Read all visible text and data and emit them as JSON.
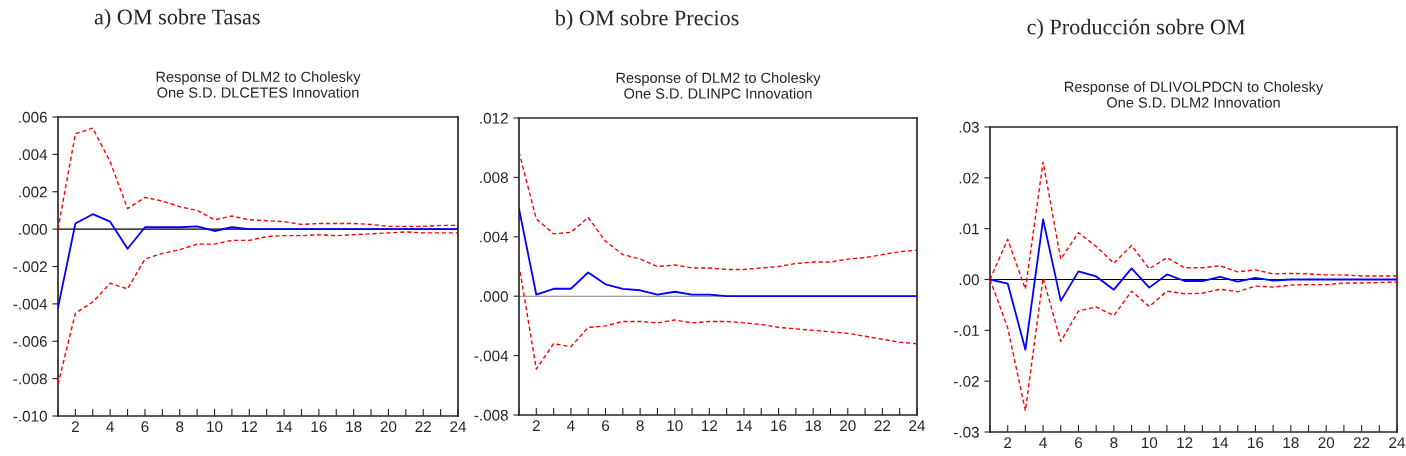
{
  "chart_data": [
    {
      "type": "line",
      "title": "a) OM sobre Tasas",
      "subtitle": "Response of DLM2 to Cholesky\nOne S.D. DLCETES Innovation",
      "x": [
        1,
        2,
        3,
        4,
        5,
        6,
        7,
        8,
        9,
        10,
        11,
        12,
        13,
        14,
        15,
        16,
        17,
        18,
        19,
        20,
        21,
        22,
        23,
        24
      ],
      "series": [
        {
          "color": "#0000ff",
          "line_style": "solid",
          "values": [
            -0.0042,
            0.0003,
            0.0008,
            0.0004,
            -0.00105,
            0.0001,
            0.0001,
            0.0001,
            0.00015,
            -0.0001,
            0.0001,
            0,
            0,
            0,
            0,
            0,
            0,
            0,
            0,
            0,
            0,
            0,
            0,
            0
          ]
        },
        {
          "color": "#ff0000",
          "line_style": "dashed",
          "values": [
            0,
            0.0051,
            0.0054,
            0.0036,
            0.0011,
            0.0017,
            0.0015,
            0.0012,
            0.001,
            0.0005,
            0.0007,
            0.0005,
            0.00045,
            0.0004,
            0.00025,
            0.0003,
            0.0003,
            0.0003,
            0.00025,
            0.00015,
            0.00015,
            0.00015,
            0.0002,
            0.0002
          ]
        },
        {
          "color": "#ff0000",
          "line_style": "dashed",
          "values": [
            -0.0083,
            -0.0045,
            -0.0039,
            -0.0029,
            -0.0032,
            -0.0016,
            -0.0013,
            -0.0011,
            -0.0008,
            -0.0008,
            -0.0006,
            -0.0006,
            -0.0004,
            -0.00035,
            -0.00035,
            -0.0003,
            -0.00035,
            -0.0003,
            -0.00025,
            -0.0002,
            -0.00015,
            -0.0002,
            -0.0002,
            -0.0002
          ]
        }
      ],
      "xlim": [
        1,
        24
      ],
      "xticks": [
        {
          "value": 1,
          "label": null
        },
        2,
        {
          "value": 3,
          "label": null
        },
        4,
        {
          "value": 5,
          "label": null
        },
        6,
        {
          "value": 7,
          "label": null
        },
        8,
        {
          "value": 9,
          "label": null
        },
        10,
        {
          "value": 11,
          "label": null
        },
        12,
        {
          "value": 13,
          "label": null
        },
        14,
        {
          "value": 15,
          "label": null
        },
        16,
        {
          "value": 17,
          "label": null
        },
        18,
        {
          "value": 19,
          "label": null
        },
        20,
        {
          "value": 21,
          "label": null
        },
        22,
        {
          "value": 23,
          "label": null
        },
        24
      ],
      "ylim": [
        -0.01,
        0.006
      ],
      "yticks": [
        {
          "value": -0.01,
          "label": "-.010"
        },
        {
          "value": -0.008,
          "label": "-.008"
        },
        {
          "value": -0.006,
          "label": "-.006"
        },
        {
          "value": -0.004,
          "label": "-.004"
        },
        {
          "value": -0.002,
          "label": "-.002"
        },
        {
          "value": 0,
          "label": ".000"
        },
        {
          "value": 0.002,
          "label": ".002"
        },
        {
          "value": 0.004,
          "label": ".004"
        },
        {
          "value": 0.006,
          "label": ".006"
        }
      ],
      "ref_lines": [
        {
          "axis": "y",
          "value": 0,
          "color": "#000000"
        }
      ],
      "grid": false,
      "legend": false
    },
    {
      "type": "line",
      "title": "b) OM sobre Precios",
      "subtitle": "Response of DLM2 to Cholesky\nOne S.D. DLINPC Innovation",
      "x": [
        1,
        2,
        3,
        4,
        5,
        6,
        7,
        8,
        9,
        10,
        11,
        12,
        13,
        14,
        15,
        16,
        17,
        18,
        19,
        20,
        21,
        22,
        23,
        24
      ],
      "series": [
        {
          "color": "#0000ff",
          "line_style": "solid",
          "values": [
            0.0059,
            0.0001,
            0.0005,
            0.0005,
            0.0016,
            0.0008,
            0.0005,
            0.0004,
            0.0001,
            0.0003,
            0.0001,
            0.0001,
            0,
            0,
            0,
            0,
            0,
            0,
            0,
            0,
            0,
            0,
            0,
            0
          ]
        },
        {
          "color": "#ff0000",
          "line_style": "dashed",
          "values": [
            0.0097,
            0.0052,
            0.0042,
            0.0043,
            0.0053,
            0.0037,
            0.0028,
            0.0025,
            0.002,
            0.0021,
            0.0019,
            0.0019,
            0.0018,
            0.0018,
            0.0019,
            0.002,
            0.0022,
            0.0023,
            0.0023,
            0.0025,
            0.0026,
            0.0028,
            0.003,
            0.0031
          ]
        },
        {
          "color": "#ff0000",
          "line_style": "dashed",
          "values": [
            0.0021,
            -0.0049,
            -0.0032,
            -0.0034,
            -0.0021,
            -0.002,
            -0.0017,
            -0.0017,
            -0.0018,
            -0.0016,
            -0.0018,
            -0.0017,
            -0.0017,
            -0.0018,
            -0.0019,
            -0.0021,
            -0.0022,
            -0.0023,
            -0.0024,
            -0.0025,
            -0.0027,
            -0.0029,
            -0.0031,
            -0.0032
          ]
        }
      ],
      "xlim": [
        1,
        24
      ],
      "xticks": [
        {
          "value": 1,
          "label": null
        },
        2,
        {
          "value": 3,
          "label": null
        },
        4,
        {
          "value": 5,
          "label": null
        },
        6,
        {
          "value": 7,
          "label": null
        },
        8,
        {
          "value": 9,
          "label": null
        },
        10,
        {
          "value": 11,
          "label": null
        },
        12,
        {
          "value": 13,
          "label": null
        },
        14,
        {
          "value": 15,
          "label": null
        },
        16,
        {
          "value": 17,
          "label": null
        },
        18,
        {
          "value": 19,
          "label": null
        },
        20,
        {
          "value": 21,
          "label": null
        },
        22,
        {
          "value": 23,
          "label": null
        },
        24
      ],
      "ylim": [
        -0.008,
        0.012
      ],
      "yticks": [
        {
          "value": -0.008,
          "label": "-.008"
        },
        {
          "value": -0.004,
          "label": "-.004"
        },
        {
          "value": 0,
          "label": ".000"
        },
        {
          "value": 0.004,
          "label": ".004"
        },
        {
          "value": 0.008,
          "label": ".008"
        },
        {
          "value": 0.012,
          "label": ".012"
        }
      ],
      "ref_lines": [
        {
          "axis": "y",
          "value": 0,
          "color": "#808080"
        }
      ],
      "grid": false,
      "legend": false
    },
    {
      "type": "line",
      "title": "c) Producción sobre OM",
      "subtitle": "Response of DLIVOLPDCN to Cholesky\nOne S.D. DLM2 Innovation",
      "x": [
        1,
        2,
        3,
        4,
        5,
        6,
        7,
        8,
        9,
        10,
        11,
        12,
        13,
        14,
        15,
        16,
        17,
        18,
        19,
        20,
        21,
        22,
        23,
        24
      ],
      "series": [
        {
          "color": "#0000ff",
          "line_style": "solid",
          "values": [
            0,
            -0.0008,
            -0.0138,
            0.0118,
            -0.0042,
            0.0016,
            0.0006,
            -0.002,
            0.0022,
            -0.0016,
            0.001,
            -0.0003,
            -0.0003,
            0.0005,
            -0.0004,
            0.0003,
            -0.0002,
            0,
            0,
            0,
            0,
            0,
            0,
            0
          ]
        },
        {
          "color": "#ff0000",
          "line_style": "dashed",
          "values": [
            0,
            0.0079,
            -0.0019,
            0.0231,
            0.004,
            0.0092,
            0.0065,
            0.0032,
            0.0067,
            0.0021,
            0.0043,
            0.0023,
            0.0023,
            0.0027,
            0.0015,
            0.0019,
            0.0011,
            0.0012,
            0.0011,
            0.0009,
            0.0009,
            0.0007,
            0.0007,
            0.0007
          ]
        },
        {
          "color": "#ff0000",
          "line_style": "dashed",
          "values": [
            0,
            -0.0095,
            -0.0258,
            0.0003,
            -0.0122,
            -0.0062,
            -0.0054,
            -0.0071,
            -0.0023,
            -0.0053,
            -0.0023,
            -0.0028,
            -0.0027,
            -0.0019,
            -0.0024,
            -0.0013,
            -0.0015,
            -0.0011,
            -0.001,
            -0.001,
            -0.0007,
            -0.0007,
            -0.0006,
            -0.0005
          ]
        }
      ],
      "xlim": [
        1,
        24
      ],
      "xticks": [
        {
          "value": 1,
          "label": null
        },
        2,
        {
          "value": 3,
          "label": null
        },
        4,
        {
          "value": 5,
          "label": null
        },
        6,
        {
          "value": 7,
          "label": null
        },
        8,
        {
          "value": 9,
          "label": null
        },
        10,
        {
          "value": 11,
          "label": null
        },
        12,
        {
          "value": 13,
          "label": null
        },
        14,
        {
          "value": 15,
          "label": null
        },
        16,
        {
          "value": 17,
          "label": null
        },
        18,
        {
          "value": 19,
          "label": null
        },
        20,
        {
          "value": 21,
          "label": null
        },
        22,
        {
          "value": 23,
          "label": null
        },
        24
      ],
      "ylim": [
        -0.03,
        0.03
      ],
      "yticks": [
        {
          "value": -0.03,
          "label": "-.03"
        },
        {
          "value": -0.02,
          "label": "-.02"
        },
        {
          "value": -0.01,
          "label": "-.01"
        },
        {
          "value": 0,
          "label": ".00"
        },
        {
          "value": 0.01,
          "label": ".01"
        },
        {
          "value": 0.02,
          "label": ".02"
        },
        {
          "value": 0.03,
          "label": ".03"
        }
      ],
      "ref_lines": [
        {
          "axis": "y",
          "value": 0,
          "color": "#000000"
        }
      ],
      "grid": false,
      "legend": false
    }
  ]
}
